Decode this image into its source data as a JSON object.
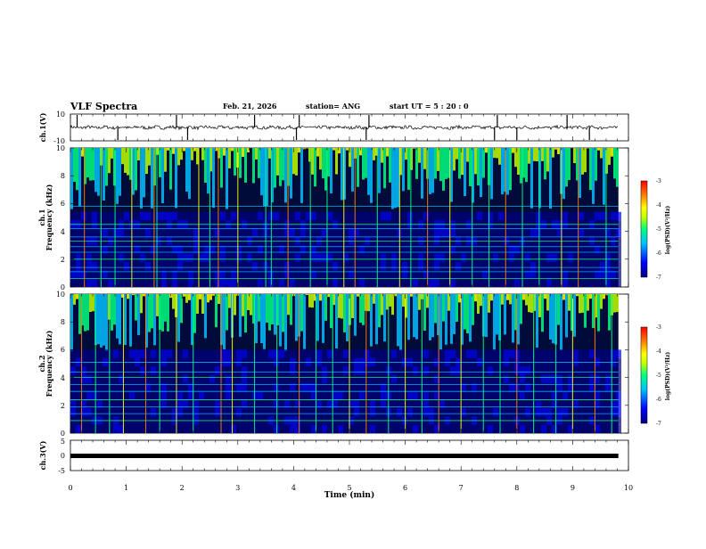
{
  "chart_data": {
    "type": "heatmap",
    "header": {
      "title": "VLF Spectra",
      "date": "Feb. 21, 2026",
      "station": "station= ANG",
      "start": "start  UT =   5  : 20 : 0"
    },
    "x_axis": {
      "label": "Time  (min)",
      "range": [
        0,
        10
      ],
      "ticks": [
        "0",
        "1",
        "2",
        "3",
        "4",
        "5",
        "6",
        "7",
        "8",
        "9",
        "10"
      ],
      "data_end_min": 9.82
    },
    "panels": [
      {
        "id": "ch1-waveform",
        "kind": "waveform",
        "ylabel": "ch.1(V)",
        "ylim": [
          -10,
          10
        ],
        "yticks": [
          "10",
          "-10"
        ],
        "baseline": 0,
        "spike_times_min": [
          0.12,
          0.85,
          1.9,
          2.1,
          3.3,
          4.05,
          4.1,
          5.3,
          5.35,
          7.6,
          7.65,
          8.0,
          8.9,
          9.3
        ]
      },
      {
        "id": "ch1-spectrogram",
        "kind": "spectrogram",
        "ylabel_1": "ch.1",
        "ylabel_2": "Frequency  (kHz)",
        "ylim": [
          0,
          10
        ],
        "yticks": [
          "0",
          "2",
          "4",
          "6",
          "8",
          "10"
        ],
        "background_top_khz": 5.3,
        "narrowband_lines_khz": [
          0.6,
          1.1,
          1.4,
          2.0,
          2.5,
          2.9,
          3.3,
          3.6,
          4.2,
          4.5,
          5.8
        ],
        "spheric_times_min": [
          0.25,
          0.55,
          0.8,
          1.1,
          1.5,
          1.55,
          2.3,
          2.5,
          2.65,
          3.0,
          3.5,
          3.6,
          3.9,
          4.3,
          4.6,
          4.9,
          5.1,
          5.5,
          5.9,
          6.1,
          6.4,
          6.8,
          7.2,
          7.5,
          7.8,
          8.1,
          8.4,
          8.8,
          9.1,
          9.6
        ],
        "colorbar": {
          "label": "log(PSD)(V²/Hz)",
          "ticks": [
            "-3",
            "-4",
            "-5",
            "-6",
            "-7"
          ],
          "range": [
            -7,
            -3
          ]
        }
      },
      {
        "id": "ch2-spectrogram",
        "kind": "spectrogram",
        "ylabel_1": "ch.2",
        "ylabel_2": "Frequency  (kHz)",
        "ylim": [
          0,
          10
        ],
        "yticks": [
          "0",
          "2",
          "4",
          "6",
          "8",
          "10"
        ],
        "background_top_khz": 5.6,
        "narrowband_lines_khz": [
          0.9,
          1.4,
          1.9,
          2.4,
          3.0,
          3.5,
          4.0,
          4.4,
          5.1
        ],
        "spheric_times_min": [
          0.2,
          0.45,
          0.7,
          0.95,
          1.35,
          1.6,
          1.9,
          2.2,
          2.7,
          2.9,
          3.3,
          3.7,
          4.1,
          4.4,
          4.7,
          5.0,
          5.3,
          5.7,
          6.0,
          6.3,
          6.6,
          7.0,
          7.4,
          7.7,
          8.0,
          8.3,
          8.7,
          9.0,
          9.4,
          9.7
        ],
        "colorbar": {
          "label": "log(PSD)(V²/Hz)",
          "ticks": [
            "-3",
            "-4",
            "-5",
            "-6",
            "-7"
          ],
          "range": [
            -7,
            -3
          ]
        }
      },
      {
        "id": "ch3-waveform",
        "kind": "waveform",
        "ylabel": "ch.3(V)",
        "ylim": [
          -5,
          5
        ],
        "yticks": [
          "5",
          "0",
          "-5"
        ],
        "baseline": 0
      }
    ],
    "colors": {
      "scale": [
        "#000080",
        "#0000ff",
        "#00c0ff",
        "#00ff80",
        "#c0ff00",
        "#ffff00",
        "#ff8000",
        "#ff0000"
      ],
      "background": "#000b3a",
      "line": "#000000"
    }
  }
}
